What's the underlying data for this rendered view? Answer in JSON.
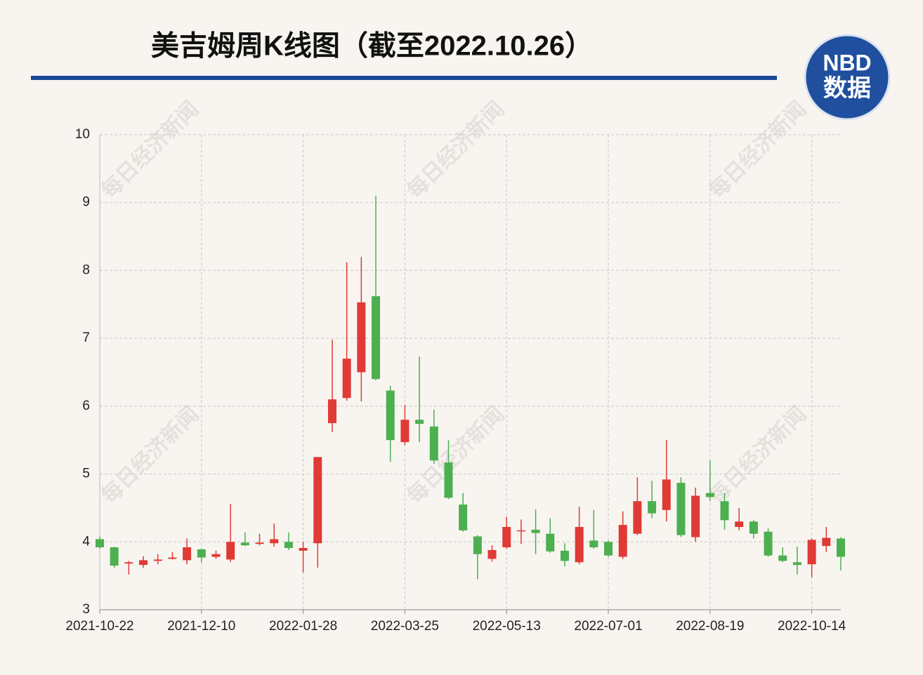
{
  "chart_data": {
    "type": "candlestick",
    "title": "美吉姆周K线图（截至2022.10.26）",
    "logo": {
      "top": "NBD",
      "bottom": "数据"
    },
    "watermark": "每日经济新闻",
    "categories": [
      "2021-10-22",
      null,
      null,
      null,
      null,
      null,
      null,
      "2021-12-10",
      null,
      null,
      null,
      null,
      null,
      null,
      "2022-01-28",
      null,
      null,
      null,
      null,
      null,
      null,
      "2022-03-25",
      null,
      null,
      null,
      null,
      null,
      null,
      "2022-05-13",
      null,
      null,
      null,
      null,
      null,
      null,
      "2022-07-01",
      null,
      null,
      null,
      null,
      null,
      null,
      "2022-08-19",
      null,
      null,
      null,
      null,
      null,
      null,
      "2022-10-14",
      null,
      null
    ],
    "open": [
      4.04,
      3.92,
      3.68,
      3.66,
      3.72,
      3.75,
      3.73,
      3.89,
      3.78,
      3.74,
      3.99,
      3.97,
      3.98,
      4.0,
      3.87,
      3.98,
      5.75,
      6.12,
      6.5,
      7.62,
      6.23,
      5.47,
      5.8,
      5.7,
      5.17,
      4.55,
      4.08,
      3.75,
      3.92,
      4.16,
      4.18,
      4.12,
      3.87,
      3.7,
      4.02,
      4.0,
      3.78,
      4.12,
      4.6,
      4.47,
      4.87,
      4.07,
      4.72,
      4.6,
      4.22,
      4.3,
      4.15,
      3.8,
      3.7,
      3.67,
      3.94,
      4.05
    ],
    "high": [
      4.08,
      3.93,
      3.72,
      3.79,
      3.82,
      3.85,
      4.05,
      3.9,
      3.87,
      4.56,
      4.14,
      4.12,
      4.27,
      4.14,
      4.0,
      5.25,
      6.98,
      8.12,
      8.2,
      9.1,
      6.3,
      6.02,
      6.73,
      5.95,
      5.5,
      4.72,
      4.1,
      3.95,
      4.37,
      4.33,
      4.48,
      4.35,
      3.98,
      4.52,
      4.47,
      4.02,
      4.45,
      4.95,
      4.9,
      5.5,
      4.95,
      4.8,
      5.2,
      4.72,
      4.5,
      4.32,
      4.2,
      3.92,
      3.93,
      4.05,
      4.22,
      4.07
    ],
    "low": [
      3.9,
      3.62,
      3.52,
      3.62,
      3.67,
      3.74,
      3.67,
      3.7,
      3.75,
      3.7,
      3.94,
      3.95,
      3.93,
      3.88,
      3.55,
      3.62,
      5.62,
      6.08,
      6.07,
      6.38,
      5.18,
      5.43,
      5.47,
      5.15,
      4.63,
      4.15,
      3.45,
      3.71,
      3.9,
      3.97,
      3.82,
      3.84,
      3.64,
      3.67,
      3.9,
      3.78,
      3.75,
      4.1,
      4.35,
      4.3,
      4.07,
      4.0,
      4.6,
      4.18,
      4.17,
      4.05,
      3.78,
      3.7,
      3.52,
      3.48,
      3.85,
      3.58
    ],
    "close": [
      3.92,
      3.65,
      3.7,
      3.73,
      3.74,
      3.77,
      3.92,
      3.77,
      3.82,
      4.0,
      3.95,
      3.99,
      4.04,
      3.91,
      3.91,
      5.25,
      6.1,
      6.7,
      7.53,
      6.4,
      5.5,
      5.8,
      5.74,
      5.2,
      4.65,
      4.17,
      3.82,
      3.88,
      4.22,
      4.17,
      4.13,
      3.86,
      3.72,
      4.22,
      3.92,
      3.8,
      4.25,
      4.6,
      4.42,
      4.92,
      4.1,
      4.68,
      4.66,
      4.32,
      4.3,
      4.12,
      3.8,
      3.72,
      3.66,
      4.03,
      4.06,
      3.78
    ],
    "up_color": "#e03a36",
    "down_color": "#4caf50",
    "ylim": [
      3,
      10
    ],
    "yticks": [
      3,
      4,
      5,
      6,
      7,
      8,
      9,
      10
    ],
    "grid": true
  }
}
